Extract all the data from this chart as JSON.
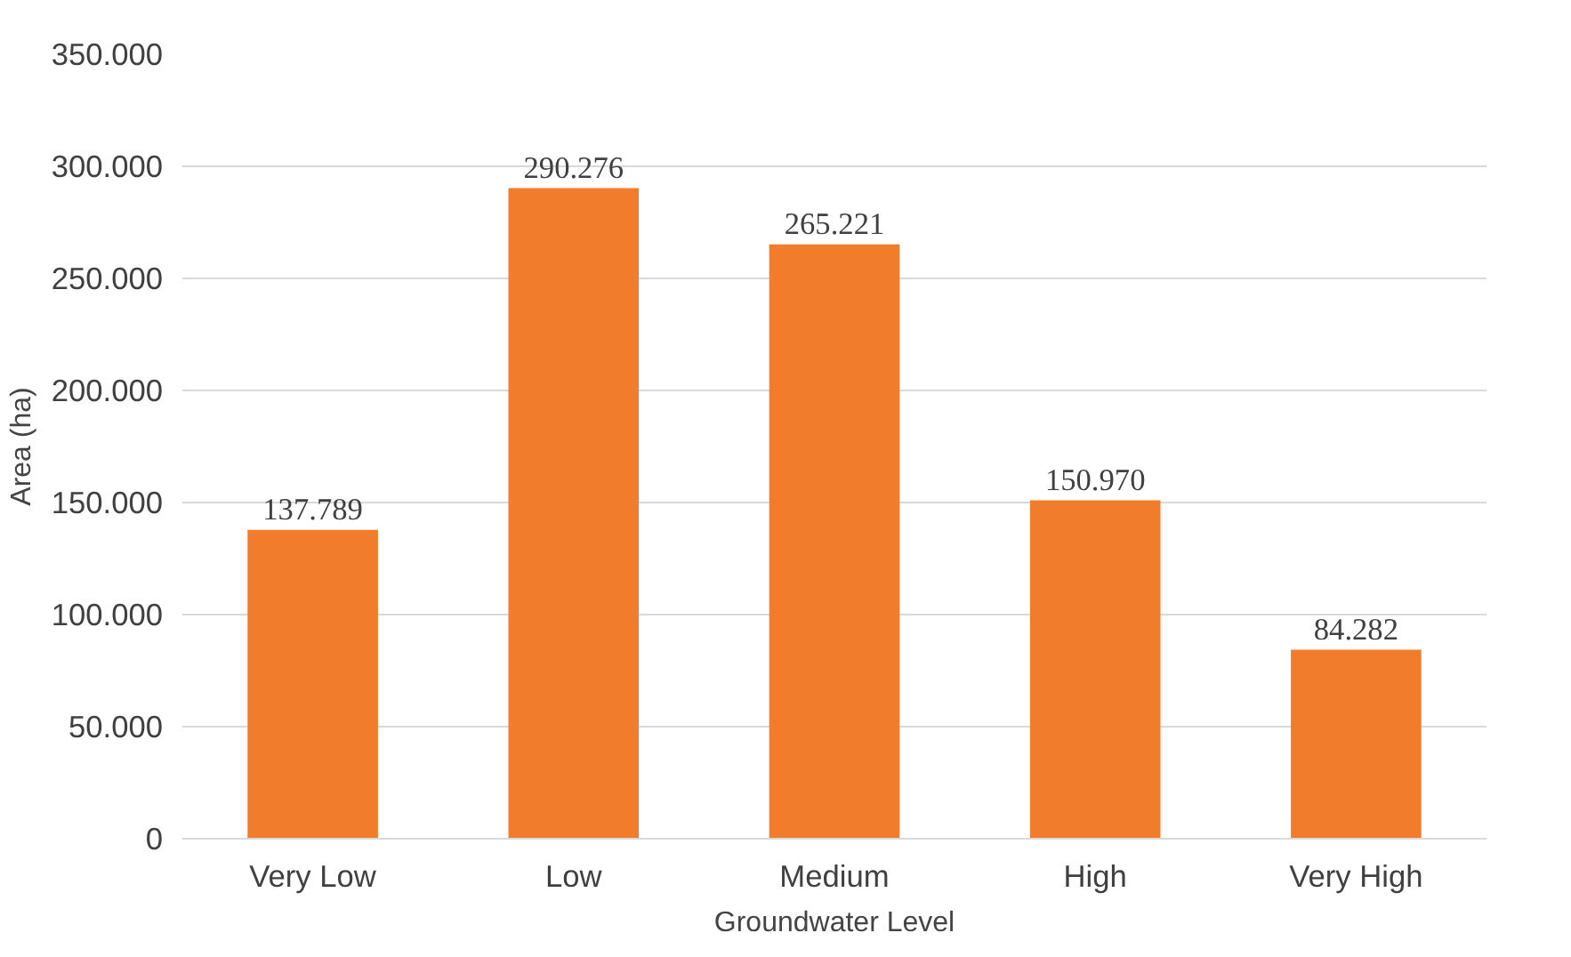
{
  "chart_data": {
    "type": "bar",
    "xlabel": "Groundwater Level",
    "ylabel": "Area (ha)",
    "categories": [
      "Very Low",
      "Low",
      "Medium",
      "High",
      "Very High"
    ],
    "values": [
      137789,
      290276,
      265221,
      150970,
      84282
    ],
    "value_labels": [
      "137.789",
      "290.276",
      "265.221",
      "150.970",
      "84.282"
    ],
    "color": "#f07c2c",
    "ylim": [
      0,
      350000
    ],
    "yticks": [
      0,
      {
        "value": 50000,
        "label": "50.000"
      },
      {
        "value": 100000,
        "label": "100.000"
      },
      {
        "value": 150000,
        "label": "150.000"
      },
      {
        "value": 200000,
        "label": "200.000"
      },
      {
        "value": 250000,
        "label": "250.000"
      },
      {
        "value": 300000,
        "label": "300.000"
      },
      {
        "value": 350000,
        "label": "350.000"
      }
    ],
    "grid": "y"
  }
}
